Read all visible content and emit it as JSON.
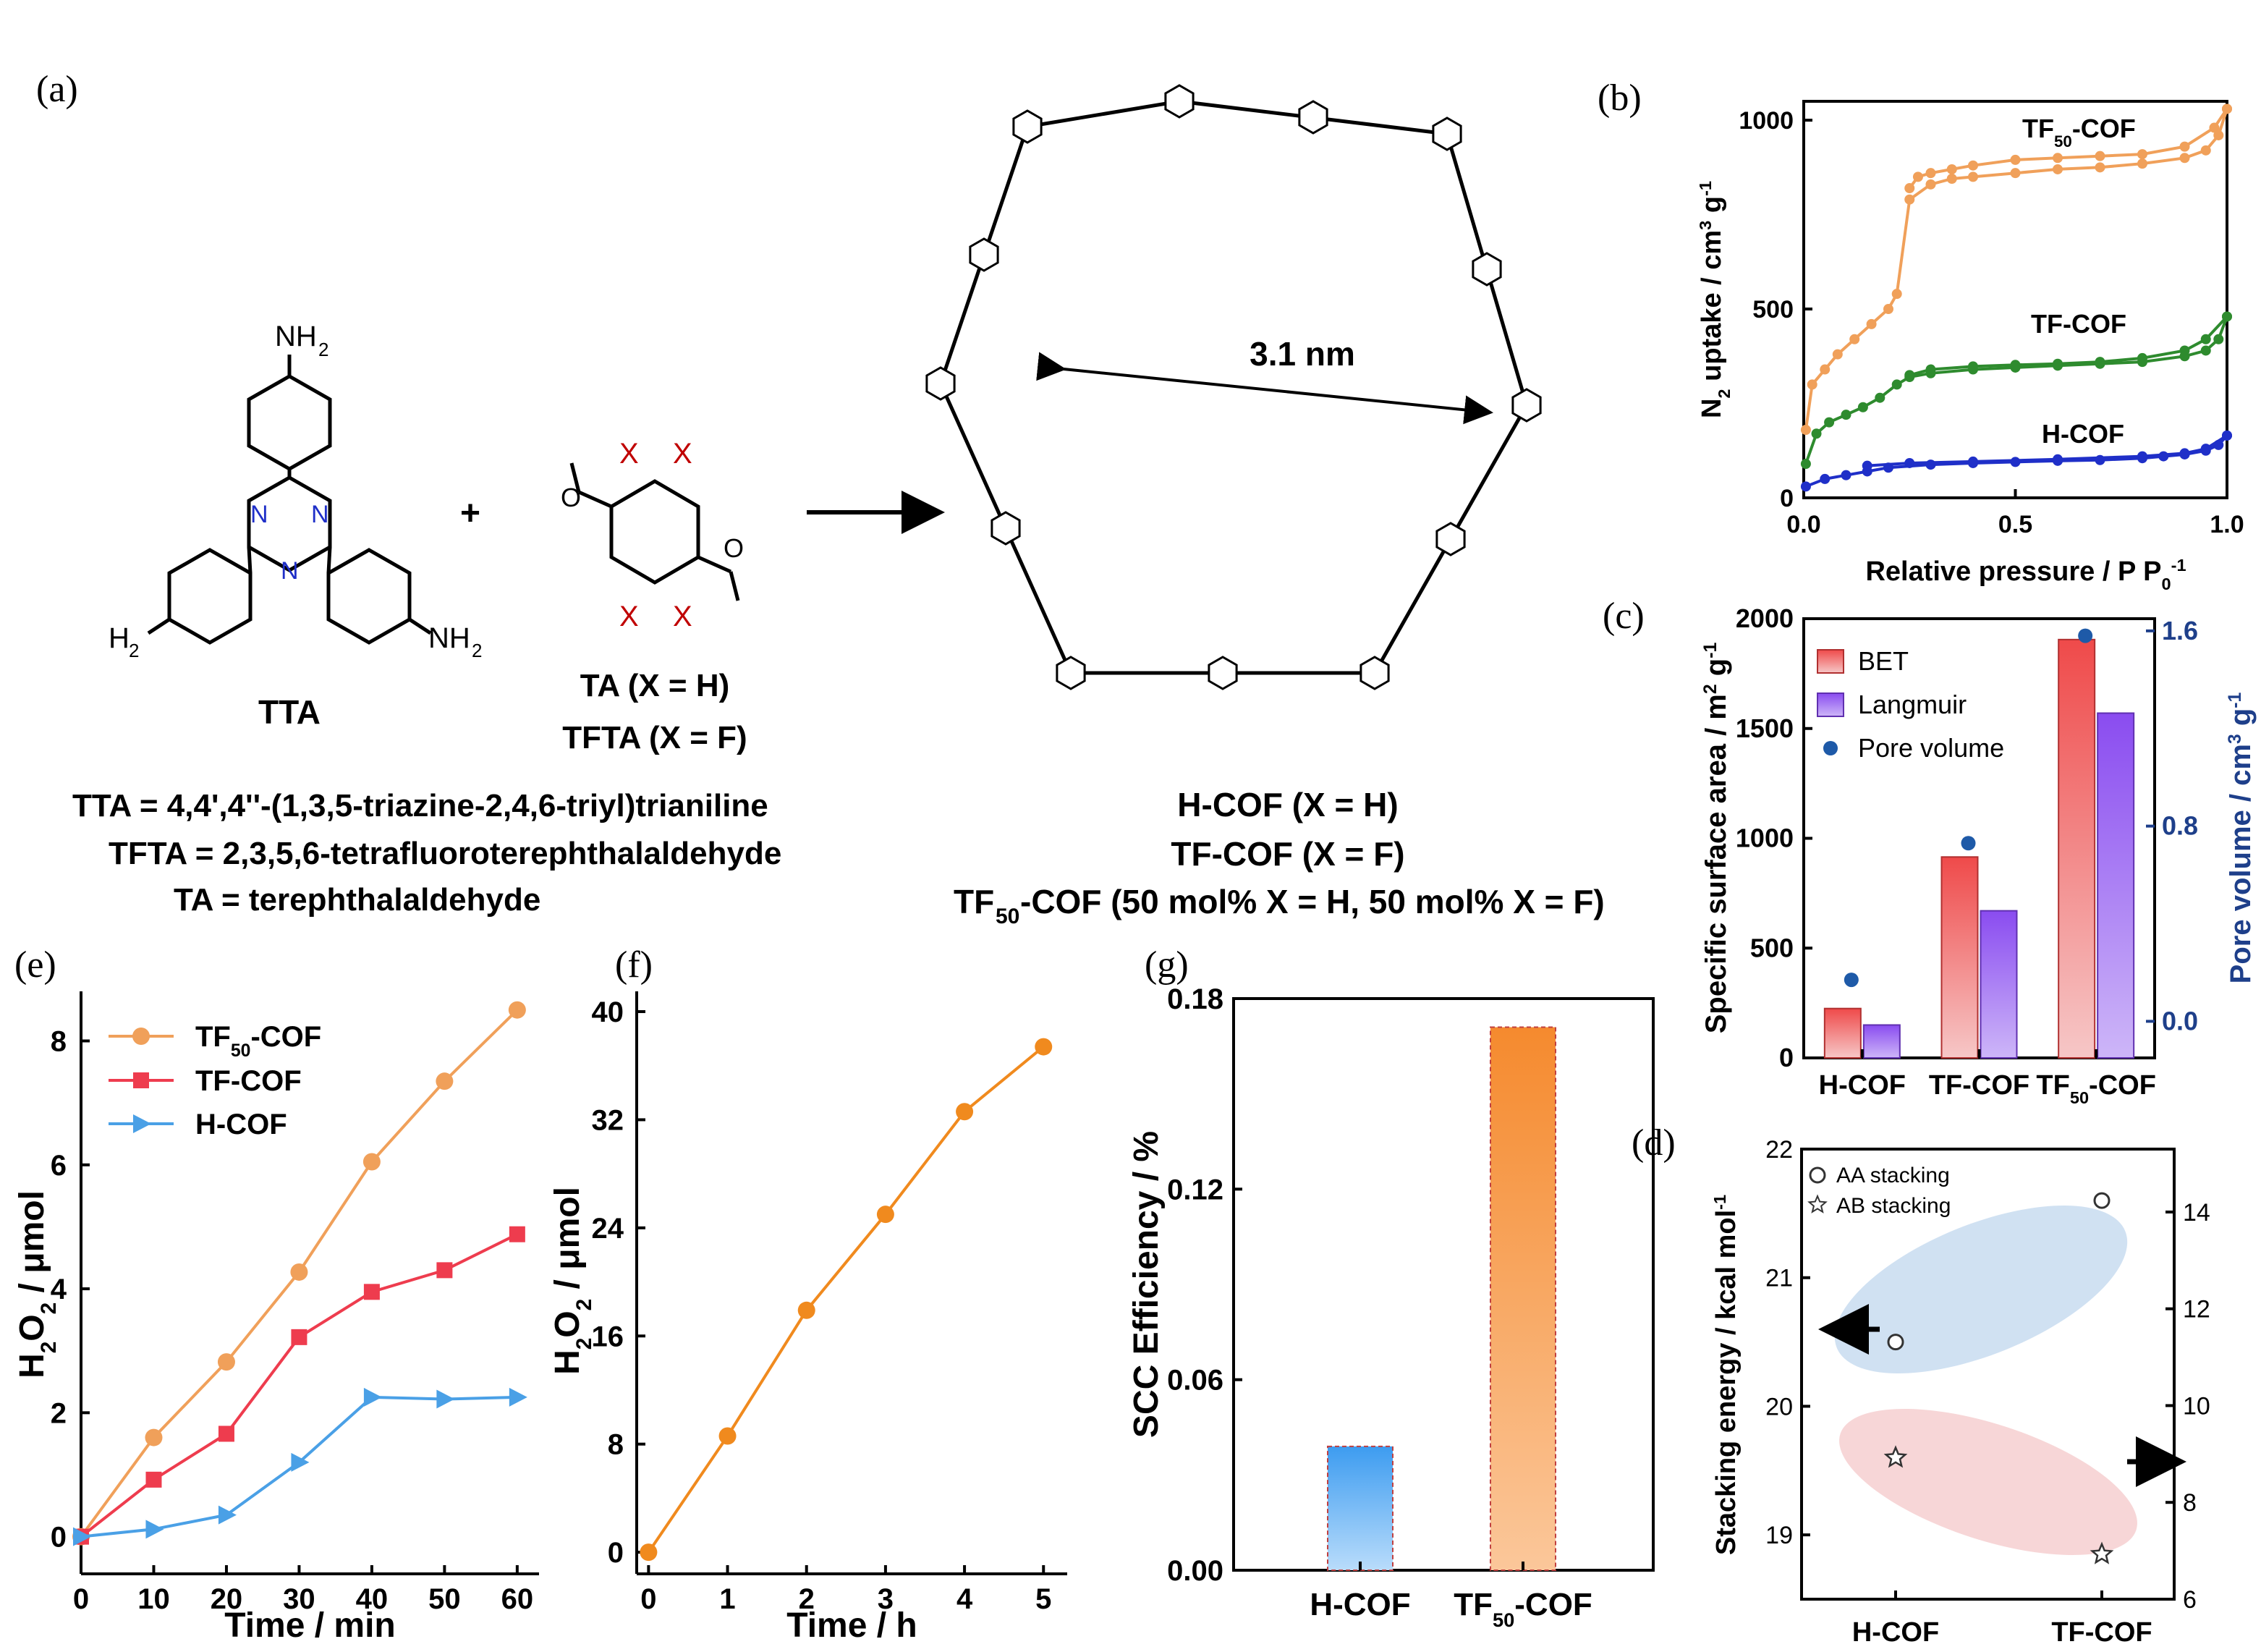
{
  "panel_labels": {
    "a": "(a)",
    "b": "(b)",
    "c": "(c)",
    "d": "(d)",
    "e": "(e)",
    "f": "(f)",
    "g": "(g)"
  },
  "scheme": {
    "tta_label": "TTA",
    "tta_atoms": {
      "nh2": "NH",
      "sub2": "2",
      "h2n": "H",
      "n2": "N",
      "n": "N"
    },
    "plus": "+",
    "ta_atoms": {
      "x": "X",
      "o": "O"
    },
    "ta_label": "TA (X = H)",
    "tfta_label": "TFTA (X = F)",
    "def_tta": "TTA = 4,4',4''-(1,3,5-triazine-2,4,6-triyl)trianiline",
    "def_tfta": "TFTA = 2,3,5,6-tetrafluoroterephthalaldehyde",
    "def_ta": "TA = terephthalaldehyde",
    "cof_h": "H-COF (X = H)",
    "cof_tf": "TF-COF (X = F)",
    "cof_tf50_pre": "TF",
    "cof_tf50_sub": "50",
    "cof_tf50_post": "-COF (50 mol% X = H, 50 mol% X = F)",
    "pore_size": "3.1 nm",
    "colors": {
      "n": "#1f2fc8",
      "x": "#c00000"
    }
  },
  "chart_data": [
    {
      "panel": "b",
      "type": "line",
      "xlabel": "Relative pressure / P P0-1",
      "ylabel": "N2 uptake / cm3 g-1",
      "xlim": [
        0,
        1
      ],
      "ylim": [
        0,
        1050
      ],
      "xticks": [
        "0.0",
        "0.5",
        "1.0"
      ],
      "yticks": [
        "0",
        "500",
        "1000"
      ],
      "series": [
        {
          "name": "TF50-COF",
          "color": "#f0a05a",
          "adsorption": {
            "x": [
              0.005,
              0.02,
              0.05,
              0.08,
              0.12,
              0.16,
              0.2,
              0.22,
              0.25,
              0.3,
              0.35,
              0.4,
              0.5,
              0.6,
              0.7,
              0.8,
              0.9,
              0.95,
              0.98,
              1.0
            ],
            "y": [
              180,
              300,
              340,
              380,
              420,
              460,
              500,
              540,
              790,
              830,
              845,
              850,
              860,
              870,
              875,
              885,
              900,
              920,
              960,
              1030
            ]
          },
          "desorption": {
            "x": [
              1.0,
              0.97,
              0.9,
              0.8,
              0.7,
              0.6,
              0.5,
              0.4,
              0.35,
              0.3,
              0.27,
              0.25
            ],
            "y": [
              1030,
              980,
              930,
              910,
              905,
              900,
              895,
              880,
              870,
              860,
              850,
              820
            ]
          }
        },
        {
          "name": "TF-COF",
          "color": "#2e8b2e",
          "adsorption": {
            "x": [
              0.005,
              0.03,
              0.06,
              0.1,
              0.14,
              0.18,
              0.22,
              0.25,
              0.3,
              0.4,
              0.5,
              0.6,
              0.7,
              0.8,
              0.9,
              0.95,
              0.98,
              1.0
            ],
            "y": [
              90,
              170,
              200,
              220,
              240,
              265,
              300,
              320,
              330,
              340,
              345,
              350,
              355,
              360,
              375,
              390,
              420,
              480
            ]
          },
          "desorption": {
            "x": [
              1.0,
              0.95,
              0.9,
              0.8,
              0.7,
              0.6,
              0.5,
              0.4,
              0.3,
              0.25
            ],
            "y": [
              480,
              420,
              390,
              370,
              360,
              355,
              352,
              348,
              340,
              325
            ]
          }
        },
        {
          "name": "H-COF",
          "color": "#1f2fc8",
          "adsorption": {
            "x": [
              0.005,
              0.05,
              0.1,
              0.15,
              0.2,
              0.3,
              0.4,
              0.5,
              0.6,
              0.7,
              0.8,
              0.85,
              0.9,
              0.95,
              0.98,
              1.0
            ],
            "y": [
              30,
              50,
              60,
              70,
              80,
              88,
              92,
              95,
              98,
              100,
              105,
              110,
              115,
              125,
              140,
              165
            ]
          },
          "desorption": {
            "x": [
              1.0,
              0.95,
              0.9,
              0.8,
              0.6,
              0.4,
              0.25,
              0.15
            ],
            "y": [
              165,
              130,
              118,
              110,
              102,
              96,
              92,
              85
            ]
          }
        }
      ],
      "labels": [
        "TF50-COF",
        "TF-COF",
        "H-COF"
      ]
    },
    {
      "panel": "c",
      "type": "bar",
      "categories": [
        "H-COF",
        "TF-COF",
        "TF50-COF"
      ],
      "ylabel": "Specific surface area / m2 g-1",
      "ylabel2": "Pore volume / cm3 g-1",
      "ylim": [
        0,
        2000
      ],
      "ylim2": [
        -0.15,
        1.65
      ],
      "yticks": [
        "0",
        "500",
        "1000",
        "1500",
        "2000"
      ],
      "yticks2": [
        "0.0",
        "0.8",
        "1.6"
      ],
      "series": [
        {
          "name": "BET",
          "color": "#ef4a4a",
          "values": [
            225,
            915,
            1905
          ]
        },
        {
          "name": "Langmuir",
          "color": "#8a4cf0",
          "values": [
            150,
            670,
            1570
          ]
        },
        {
          "name": "Pore volume",
          "color": "#1e5aa8",
          "values": [
            0.17,
            0.73,
            1.58
          ]
        }
      ]
    },
    {
      "panel": "d",
      "type": "scatter",
      "categories": [
        "H-COF",
        "TF-COF"
      ],
      "ylabel": "Stacking energy / kcal mol-1",
      "ylim": [
        18.5,
        22
      ],
      "ylim2": [
        6,
        15.3
      ],
      "yticks": [
        "19",
        "20",
        "21",
        "22"
      ],
      "yticks2": [
        "6",
        "8",
        "10",
        "12",
        "14"
      ],
      "series": [
        {
          "name": "AA stacking",
          "values": [
            20.5,
            21.6
          ]
        },
        {
          "name": "AB stacking",
          "values": [
            19.6,
            18.85
          ]
        }
      ]
    },
    {
      "panel": "e",
      "type": "line",
      "xlabel": "Time / min",
      "ylabel": "H2O2 / μmol",
      "xlim": [
        0,
        63
      ],
      "ylim": [
        -0.6,
        8.8
      ],
      "xticks": [
        "0",
        "10",
        "20",
        "30",
        "40",
        "50",
        "60"
      ],
      "yticks": [
        "0",
        "2",
        "4",
        "6",
        "8"
      ],
      "x": [
        0,
        10,
        20,
        30,
        40,
        50,
        60
      ],
      "series": [
        {
          "name": "TF50-COF",
          "color": "#f0a05a",
          "values": [
            0,
            1.6,
            2.82,
            4.27,
            6.05,
            7.35,
            8.5
          ]
        },
        {
          "name": "TF-COF",
          "color": "#ee3c4e",
          "values": [
            0,
            0.92,
            1.66,
            3.22,
            3.95,
            4.3,
            4.88
          ]
        },
        {
          "name": "H-COF",
          "color": "#4aa0e6",
          "values": [
            0,
            0.12,
            0.35,
            1.2,
            2.25,
            2.22,
            2.25
          ]
        }
      ]
    },
    {
      "panel": "f",
      "type": "line",
      "xlabel": "Time / h",
      "ylabel": "H2O2 / μmol",
      "xlim": [
        -0.15,
        5.3
      ],
      "ylim": [
        -1.6,
        41.5
      ],
      "xticks": [
        "0",
        "1",
        "2",
        "3",
        "4",
        "5"
      ],
      "yticks": [
        "0",
        "8",
        "16",
        "24",
        "32",
        "40"
      ],
      "x": [
        0,
        1,
        2,
        3,
        4,
        5
      ],
      "series": [
        {
          "name": "TF50-COF",
          "color": "#f08a1e",
          "values": [
            0,
            8.6,
            17.9,
            25,
            32.6,
            37.4
          ]
        }
      ]
    },
    {
      "panel": "g",
      "type": "bar",
      "categories": [
        "H-COF",
        "TF50-COF"
      ],
      "ylabel": "SCC Efficiency / %",
      "ylim": [
        0,
        0.18
      ],
      "yticks": [
        "0.00",
        "0.06",
        "0.12",
        "0.18"
      ],
      "series": [
        {
          "name": "SCC Efficiency",
          "values": [
            0.039,
            0.171
          ]
        }
      ],
      "colors": [
        "#4aa6f0",
        "#f5923e"
      ]
    }
  ]
}
